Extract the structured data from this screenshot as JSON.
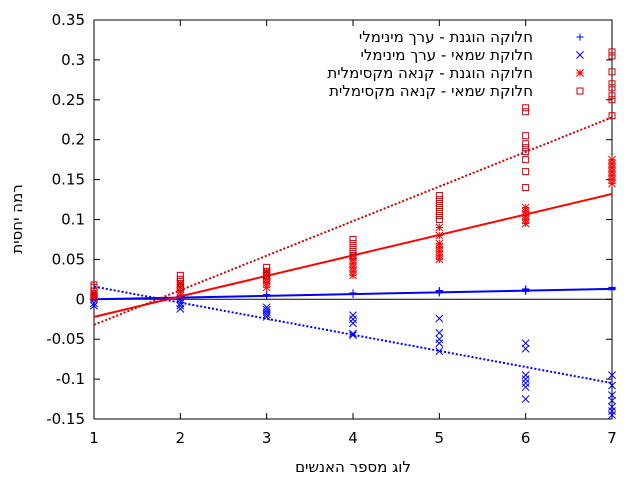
{
  "chart_data": {
    "type": "scatter",
    "xlabel": "לוג מספר האנשים",
    "ylabel": "רמה יחסית",
    "xlim": [
      1,
      7
    ],
    "ylim": [
      -0.15,
      0.35
    ],
    "x_ticks": [
      "1",
      "2",
      "3",
      "4",
      "5",
      "6",
      "7"
    ],
    "y_ticks": [
      "-0.15",
      "-0.1",
      "-0.05",
      "0",
      "0.05",
      "0.1",
      "0.15",
      "0.2",
      "0.25",
      "0.3",
      "0.35"
    ],
    "grid": false,
    "legend_position": "top-right",
    "series": [
      {
        "name": "חלוקה הוגנת - ערך מינימלי",
        "marker": "plus",
        "color": "#0000ff",
        "points": [
          [
            1,
            0.0
          ],
          [
            1,
            0.001
          ],
          [
            1,
            -0.001
          ],
          [
            2,
            0.002
          ],
          [
            2,
            0.003
          ],
          [
            2,
            0.001
          ],
          [
            3,
            0.004
          ],
          [
            3,
            0.005
          ],
          [
            3,
            0.006
          ],
          [
            4,
            0.007
          ],
          [
            4,
            0.008
          ],
          [
            4,
            0.006
          ],
          [
            5,
            0.009
          ],
          [
            5,
            0.01
          ],
          [
            5,
            0.008
          ],
          [
            5,
            0.011
          ],
          [
            6,
            0.011
          ],
          [
            6,
            0.012
          ],
          [
            6,
            0.01
          ],
          [
            6,
            0.013
          ],
          [
            7,
            0.013
          ],
          [
            7,
            0.014
          ],
          [
            7,
            0.012
          ],
          [
            7,
            0.015
          ]
        ],
        "fit": {
          "x": [
            1,
            7
          ],
          "y": [
            0.0,
            0.013
          ],
          "style": "solid"
        }
      },
      {
        "name": "חלוקת שמאי - ערך מינימלי",
        "marker": "x",
        "color": "#0000ff",
        "points": [
          [
            1,
            -0.005
          ],
          [
            1,
            -0.008
          ],
          [
            1,
            0.0
          ],
          [
            2,
            -0.005
          ],
          [
            2,
            -0.008
          ],
          [
            2,
            -0.012
          ],
          [
            2,
            0.0
          ],
          [
            3,
            -0.01
          ],
          [
            3,
            -0.013
          ],
          [
            3,
            -0.016
          ],
          [
            3,
            -0.019
          ],
          [
            3,
            -0.022
          ],
          [
            4,
            -0.02
          ],
          [
            4,
            -0.025
          ],
          [
            4,
            -0.03
          ],
          [
            4,
            -0.045
          ],
          [
            4,
            -0.043
          ],
          [
            5,
            -0.024
          ],
          [
            5,
            -0.042
          ],
          [
            5,
            -0.05
          ],
          [
            5,
            -0.055
          ],
          [
            5,
            -0.065
          ],
          [
            6,
            -0.055
          ],
          [
            6,
            -0.062
          ],
          [
            6,
            -0.095
          ],
          [
            6,
            -0.1
          ],
          [
            6,
            -0.105
          ],
          [
            6,
            -0.11
          ],
          [
            6,
            -0.125
          ],
          [
            7,
            -0.095
          ],
          [
            7,
            -0.108
          ],
          [
            7,
            -0.12
          ],
          [
            7,
            -0.127
          ],
          [
            7,
            -0.135
          ],
          [
            7,
            -0.14
          ],
          [
            7,
            -0.145
          ]
        ],
        "fit": {
          "x": [
            1,
            7
          ],
          "y": [
            0.016,
            -0.105
          ],
          "style": "dotted"
        }
      },
      {
        "name": "חלוקה הוגנת - קנאה מקסימלית",
        "marker": "star",
        "color": "#ff0000",
        "points": [
          [
            1,
            0.002
          ],
          [
            1,
            0.005
          ],
          [
            1,
            0.008
          ],
          [
            2,
            0.005
          ],
          [
            2,
            0.01
          ],
          [
            2,
            0.015
          ],
          [
            2,
            0.02
          ],
          [
            3,
            0.015
          ],
          [
            3,
            0.02
          ],
          [
            3,
            0.025
          ],
          [
            3,
            0.03
          ],
          [
            3,
            0.035
          ],
          [
            4,
            0.03
          ],
          [
            4,
            0.035
          ],
          [
            4,
            0.04
          ],
          [
            4,
            0.045
          ],
          [
            4,
            0.05
          ],
          [
            4,
            0.055
          ],
          [
            5,
            0.05
          ],
          [
            5,
            0.055
          ],
          [
            5,
            0.06
          ],
          [
            5,
            0.065
          ],
          [
            5,
            0.07
          ],
          [
            5,
            0.08
          ],
          [
            5,
            0.09
          ],
          [
            6,
            0.095
          ],
          [
            6,
            0.1
          ],
          [
            6,
            0.105
          ],
          [
            6,
            0.11
          ],
          [
            6,
            0.115
          ],
          [
            7,
            0.145
          ],
          [
            7,
            0.15
          ],
          [
            7,
            0.155
          ],
          [
            7,
            0.16
          ],
          [
            7,
            0.165
          ],
          [
            7,
            0.17
          ],
          [
            7,
            0.175
          ]
        ],
        "fit": {
          "x": [
            1,
            7
          ],
          "y": [
            -0.022,
            0.132
          ],
          "style": "solid"
        }
      },
      {
        "name": "חלוקת שמאי - קנאה מקסימלית",
        "marker": "square",
        "color": "#cc0000",
        "points": [
          [
            1,
            0.005
          ],
          [
            1,
            0.01
          ],
          [
            1,
            0.015
          ],
          [
            1,
            0.018
          ],
          [
            2,
            0.015
          ],
          [
            2,
            0.02
          ],
          [
            2,
            0.025
          ],
          [
            2,
            0.03
          ],
          [
            3,
            0.025
          ],
          [
            3,
            0.03
          ],
          [
            3,
            0.035
          ],
          [
            3,
            0.04
          ],
          [
            4,
            0.055
          ],
          [
            4,
            0.06
          ],
          [
            4,
            0.065
          ],
          [
            4,
            0.07
          ],
          [
            4,
            0.075
          ],
          [
            5,
            0.1
          ],
          [
            5,
            0.105
          ],
          [
            5,
            0.11
          ],
          [
            5,
            0.115
          ],
          [
            5,
            0.12
          ],
          [
            5,
            0.125
          ],
          [
            5,
            0.13
          ],
          [
            6,
            0.14
          ],
          [
            6,
            0.16
          ],
          [
            6,
            0.175
          ],
          [
            6,
            0.185
          ],
          [
            6,
            0.19
          ],
          [
            6,
            0.195
          ],
          [
            6,
            0.205
          ],
          [
            6,
            0.235
          ],
          [
            6,
            0.24
          ],
          [
            7,
            0.23
          ],
          [
            7,
            0.25
          ],
          [
            7,
            0.255
          ],
          [
            7,
            0.265
          ],
          [
            7,
            0.27
          ],
          [
            7,
            0.285
          ],
          [
            7,
            0.305
          ],
          [
            7,
            0.31
          ]
        ],
        "fit": {
          "x": [
            1,
            7
          ],
          "y": [
            -0.032,
            0.228
          ],
          "style": "dotted"
        }
      }
    ]
  }
}
